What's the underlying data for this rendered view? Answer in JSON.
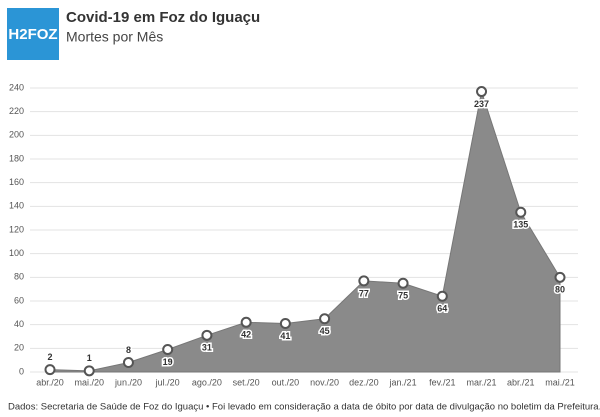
{
  "logo": "H2FOZ",
  "chart_data": {
    "type": "area",
    "title": "Covid-19 em Foz do Iguaçu",
    "subtitle": "Mortes por Mês",
    "categories": [
      "abr./20",
      "mai./20",
      "jun./20",
      "jul./20",
      "ago./20",
      "set./20",
      "out./20",
      "nov./20",
      "dez./20",
      "jan./21",
      "fev./21",
      "mar./21",
      "abr./21",
      "mai./21"
    ],
    "values": [
      2,
      1,
      8,
      19,
      31,
      42,
      41,
      45,
      77,
      75,
      64,
      237,
      135,
      80
    ],
    "color": "#8a8a8a",
    "ylim": [
      0,
      240
    ],
    "yticks": [
      0,
      20,
      40,
      60,
      80,
      100,
      120,
      140,
      160,
      180,
      200,
      220,
      240
    ],
    "grid": true,
    "source": "Dados: Secretaria de Saúde de Foz do Iguaçu • Foi levado em consideração a data de óbito por data de divulgação no boletim da Prefeitura."
  }
}
